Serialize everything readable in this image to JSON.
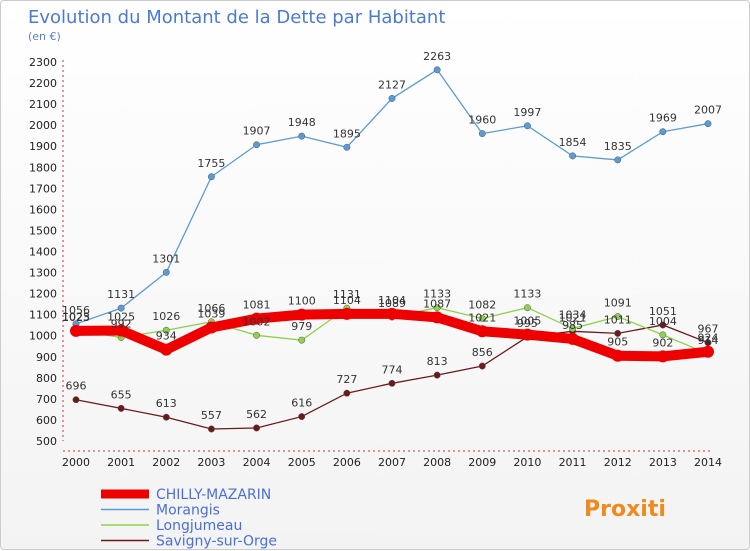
{
  "header": {
    "title": "Evolution du Montant de la Dette par Habitant",
    "unit": "(en €)"
  },
  "brand": {
    "logo_text": "Proxiti"
  },
  "chart_data": {
    "type": "line",
    "title": "Evolution du Montant de la Dette par Habitant",
    "ylabel": "(en €)",
    "xlabel": "",
    "x": [
      "2000",
      "2001",
      "2002",
      "2003",
      "2004",
      "2005",
      "2006",
      "2007",
      "2008",
      "2009",
      "2010",
      "2011",
      "2012",
      "2013",
      "2014"
    ],
    "ylim": [
      500,
      2300
    ],
    "yticks": [
      500,
      600,
      700,
      800,
      900,
      1000,
      1100,
      1200,
      1300,
      1400,
      1500,
      1600,
      1700,
      1800,
      1900,
      2000,
      2100,
      2200,
      2300
    ],
    "grid": false,
    "legend_position": "bottom-left",
    "series": [
      {
        "name": "CHILLY-MAZARIN",
        "color": "#ee0000",
        "emphasis": true,
        "values": [
          1023,
          1025,
          934,
          1039,
          1081,
          1100,
          1104,
          1104,
          1087,
          1021,
          1005,
          985,
          905,
          902,
          924
        ]
      },
      {
        "name": "Morangis",
        "color": "#5b9bd5",
        "values": [
          1056,
          1131,
          1301,
          1755,
          1907,
          1948,
          1895,
          2127,
          2263,
          1960,
          1997,
          1854,
          1835,
          1969,
          2007
        ]
      },
      {
        "name": "Longjumeau",
        "color": "#8fd14f",
        "values": [
          1025,
          992,
          1026,
          1066,
          1002,
          979,
          1131,
          1089,
          1133,
          1082,
          1133,
          1034,
          1091,
          1004,
          914
        ]
      },
      {
        "name": "Savigny-sur-Orge",
        "color": "#6b1a1a",
        "values": [
          696,
          655,
          613,
          557,
          562,
          616,
          727,
          774,
          813,
          856,
          995,
          1021,
          1011,
          1051,
          967
        ]
      }
    ],
    "data_labels": [
      [
        "1023",
        "1025",
        "934",
        "1039",
        "1081",
        "1100",
        "1104",
        "1104",
        "1087",
        "1021",
        "1005",
        "985",
        "905",
        "902",
        "924"
      ],
      [
        "1056",
        "1131",
        "1301",
        "1755",
        "1907",
        "1948",
        "1895",
        "2127",
        "2263",
        "1960",
        "1997",
        "1854",
        "1835",
        "1969",
        "2007"
      ],
      [
        "1025",
        "992",
        "1026",
        "1066",
        "1002",
        "979",
        "1131",
        "1089",
        "1133",
        "1082",
        "1133",
        "1034",
        "1091",
        "1004",
        "914"
      ],
      [
        "696",
        "655",
        "613",
        "557",
        "562",
        "616",
        "727",
        "774",
        "813",
        "856",
        "995",
        "1021",
        "1011",
        "1051",
        "967"
      ]
    ]
  }
}
